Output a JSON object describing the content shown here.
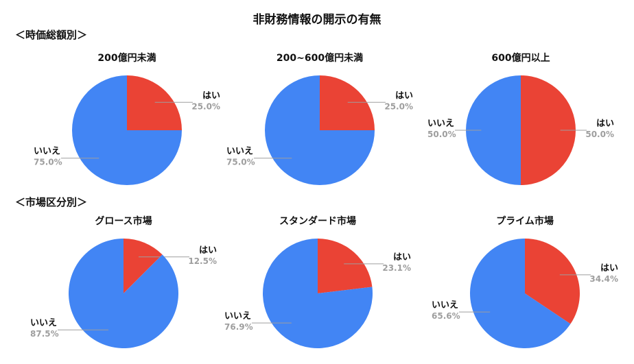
{
  "title": "非財務情報の開示の有無",
  "sections": [
    "＜時価総額別＞",
    "＜市場区分別＞"
  ],
  "colors": {
    "yes": "#ea4335",
    "no": "#4285f4",
    "label": "#111111",
    "pct": "#9e9e9e",
    "leader": "#9e9e9e"
  },
  "chart_data": [
    {
      "type": "pie",
      "title": "200億円未満",
      "slices": [
        {
          "label": "はい",
          "value": 25.0,
          "pct": "25.0%"
        },
        {
          "label": "いいえ",
          "value": 75.0,
          "pct": "75.0%"
        }
      ]
    },
    {
      "type": "pie",
      "title": "200~600億円未満",
      "slices": [
        {
          "label": "はい",
          "value": 25.0,
          "pct": "25.0%"
        },
        {
          "label": "いいえ",
          "value": 75.0,
          "pct": "75.0%"
        }
      ]
    },
    {
      "type": "pie",
      "title": "600億円以上",
      "slices": [
        {
          "label": "はい",
          "value": 50.0,
          "pct": "50.0%"
        },
        {
          "label": "いいえ",
          "value": 50.0,
          "pct": "50.0%"
        }
      ]
    },
    {
      "type": "pie",
      "title": "グロース市場",
      "slices": [
        {
          "label": "はい",
          "value": 12.5,
          "pct": "12.5%"
        },
        {
          "label": "いいえ",
          "value": 87.5,
          "pct": "87.5%"
        }
      ]
    },
    {
      "type": "pie",
      "title": "スタンダード市場",
      "slices": [
        {
          "label": "はい",
          "value": 23.1,
          "pct": "23.1%"
        },
        {
          "label": "いいえ",
          "value": 76.9,
          "pct": "76.9%"
        }
      ]
    },
    {
      "type": "pie",
      "title": "プライム市場",
      "slices": [
        {
          "label": "はい",
          "value": 34.4,
          "pct": "34.4%"
        },
        {
          "label": "いいえ",
          "value": 65.6,
          "pct": "65.6%"
        }
      ]
    }
  ]
}
